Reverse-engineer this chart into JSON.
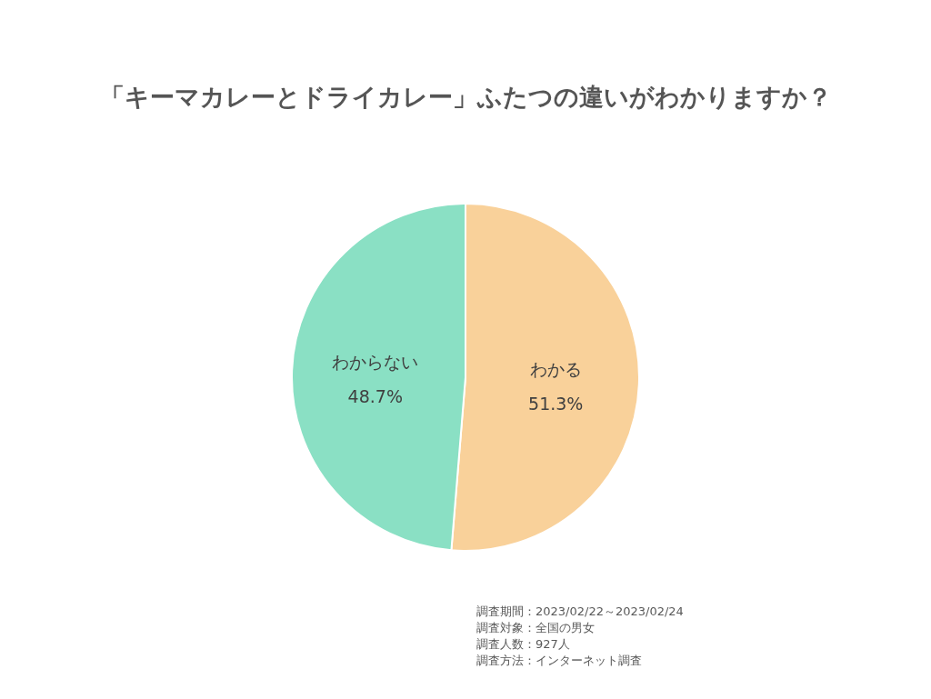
{
  "chart_data": {
    "type": "pie",
    "title": "「キーマカレーとドライカレー」ふたつの違いがわかりますか？",
    "categories": [
      "わかる",
      "わからない"
    ],
    "values": [
      51.3,
      48.7
    ],
    "colors": [
      "#f9d19a",
      "#8ae0c4"
    ],
    "value_labels": [
      "51.3%",
      "48.7%"
    ],
    "annotations": [
      "調査期間：2023/02/22～2023/02/24",
      "調査対象：全国の男女",
      "調査人数：927人",
      "調査方法：インターネット調査"
    ]
  }
}
